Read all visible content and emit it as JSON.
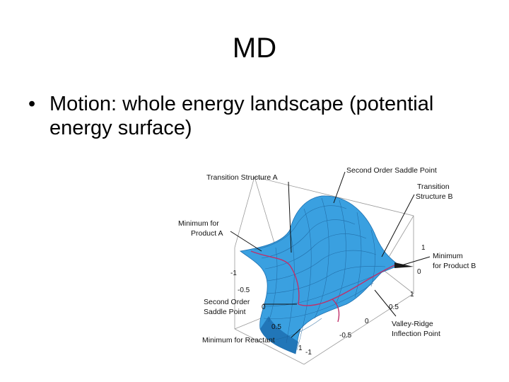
{
  "slide": {
    "title": "MD",
    "bullet_glyph": "•",
    "bullets": [
      {
        "text": "Motion: whole energy landscape (potential energy surface)"
      }
    ]
  },
  "figure": {
    "icon": "potential-energy-surface-3d-plot",
    "surface_color": "#3aa0e0",
    "surface_dark": "#1d6fb0",
    "path_color": "#c0306a",
    "labels": {
      "ts_a": "Transition Structure A",
      "so_saddle_top": "Second Order Saddle Point",
      "ts_b_line1": "Transition",
      "ts_b_line2": "Structure B",
      "min_prod_a_line1": "Minimum for",
      "min_prod_a_line2": "Product A",
      "min_prod_b_line1": "Minimum",
      "min_prod_b_line2": "for Product B",
      "so_saddle_line1": "Second Order",
      "so_saddle_line2": "Saddle Point",
      "min_reactant": "Minimum for Reactant",
      "vr_line1": "Valley-Ridge",
      "vr_line2": "Inflection Point"
    },
    "ticks": {
      "left_axis": [
        "-1",
        "-0.5",
        "0",
        "0.5",
        "1"
      ],
      "bottom_axis": [
        "-1",
        "-0.5",
        "0",
        "0.5",
        "1"
      ],
      "vertical_axis": [
        "1",
        "0"
      ]
    }
  }
}
